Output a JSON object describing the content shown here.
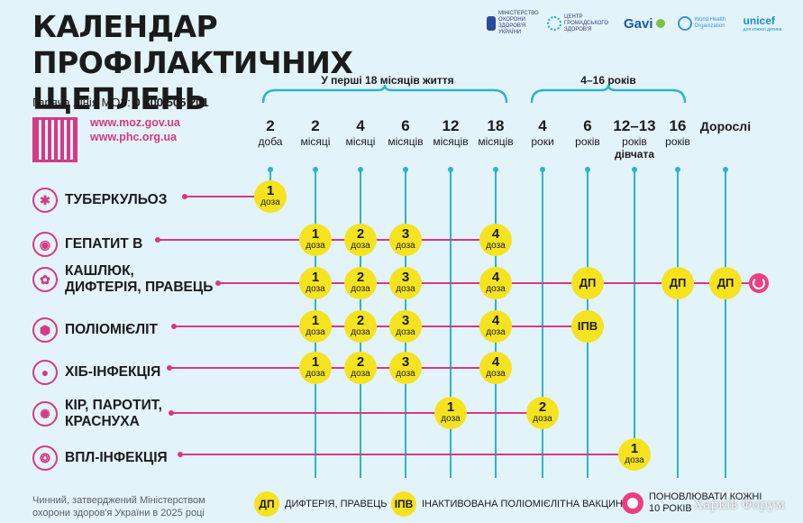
{
  "title": "КАЛЕНДАР ПРОФІЛАКТИЧНИХ ЩЕПЛЕНЬ",
  "logos": [
    {
      "name": "ministry-logo",
      "text": "МІНІСТЕРСТВО ОХОРОНИ ЗДОРОВ'Я УКРАЇНИ",
      "color": "#2b4a9a"
    },
    {
      "name": "phc-logo",
      "text": "ЦЕНТР ГРОМАДСЬКОГО ЗДОРОВ'Я",
      "color": "#1a9fd8"
    },
    {
      "name": "gavi-logo",
      "text": "Gavi"
    },
    {
      "name": "who-logo",
      "text": "World Health Organization",
      "color": "#3a93d6"
    },
    {
      "name": "unicef-logo",
      "text": "unicef",
      "sub": "для кожної дитини"
    }
  ],
  "hotline": {
    "label": "Гаряча лінія МОЗ:",
    "number": "0 800 505 201"
  },
  "links": [
    "www.moz.gov.ua",
    "www.phc.org.ua"
  ],
  "age_groups": [
    {
      "label": "У перші 18 місяців життя"
    },
    {
      "label": "4–16 років"
    }
  ],
  "columns": [
    {
      "num": "2",
      "unit": "доба"
    },
    {
      "num": "2",
      "unit": "місяці"
    },
    {
      "num": "4",
      "unit": "місяці"
    },
    {
      "num": "6",
      "unit": "місяців"
    },
    {
      "num": "12",
      "unit": "місяців"
    },
    {
      "num": "18",
      "unit": "місяців"
    },
    {
      "num": "4",
      "unit": "роки"
    },
    {
      "num": "6",
      "unit": "років"
    },
    {
      "num": "12–13",
      "unit": "років",
      "extra": "дівчата"
    },
    {
      "num": "16",
      "unit": "років"
    },
    {
      "num": "Дорослі",
      "unit": ""
    }
  ],
  "dose_label": "доза",
  "diseases": [
    {
      "name": "ТУБЕРКУЛЬОЗ",
      "icon": "tuberculosis-icon",
      "doses": [
        {
          "col": 0,
          "v": "1"
        }
      ]
    },
    {
      "name": "ГЕПАТИТ В",
      "icon": "hepatitis-icon",
      "doses": [
        {
          "col": 1,
          "v": "1"
        },
        {
          "col": 2,
          "v": "2"
        },
        {
          "col": 3,
          "v": "3"
        },
        {
          "col": 5,
          "v": "4"
        }
      ]
    },
    {
      "name": "КАШЛЮК,\nДИФТЕРІЯ, ПРАВЕЦЬ",
      "icon": "pertussis-icon",
      "doses": [
        {
          "col": 1,
          "v": "1"
        },
        {
          "col": 2,
          "v": "2"
        },
        {
          "col": 3,
          "v": "3"
        },
        {
          "col": 5,
          "v": "4"
        },
        {
          "col": 7,
          "v": "ДП",
          "code": true
        },
        {
          "col": 9,
          "v": "ДП",
          "code": true
        },
        {
          "col": 10,
          "v": "ДП",
          "code": true
        }
      ],
      "renew": true
    },
    {
      "name": "ПОЛІОМІЄЛІТ",
      "icon": "polio-icon",
      "doses": [
        {
          "col": 1,
          "v": "1"
        },
        {
          "col": 2,
          "v": "2"
        },
        {
          "col": 3,
          "v": "3"
        },
        {
          "col": 5,
          "v": "4"
        },
        {
          "col": 7,
          "v": "ІПВ",
          "code": true
        }
      ]
    },
    {
      "name": "ХІБ-ІНФЕКЦІЯ",
      "icon": "hib-icon",
      "doses": [
        {
          "col": 1,
          "v": "1"
        },
        {
          "col": 2,
          "v": "2"
        },
        {
          "col": 3,
          "v": "3"
        },
        {
          "col": 5,
          "v": "4"
        }
      ]
    },
    {
      "name": "КІР, ПАРОТИТ,\nКРАСНУХА",
      "icon": "measles-icon",
      "doses": [
        {
          "col": 4,
          "v": "1"
        },
        {
          "col": 6,
          "v": "2"
        }
      ]
    },
    {
      "name": "ВПЛ-ІНФЕКЦІЯ",
      "icon": "hpv-icon",
      "doses": [
        {
          "col": 8,
          "v": "1"
        }
      ]
    }
  ],
  "footer_note": "Чинний, затверджений Міністерством охорони здоров'я України в 2025 році",
  "legend": [
    {
      "code": "ДП",
      "text": "ДИФТЕРІЯ, ПРАВЕЦЬ"
    },
    {
      "code": "ІПВ",
      "text": "ІНАКТИВОВАНА ПОЛІОМІЄЛІТНА ВАКЦИНА"
    },
    {
      "code": "",
      "text": "ПОНОВЛЮВАТИ КОЖНІ\n10 РОКІВ",
      "pink": true
    }
  ],
  "watermark": "Харків Форум",
  "colors": {
    "background": "#e3f3fa",
    "accent_pink": "#d43a85",
    "teal_line": "#2bb5c8",
    "dose_yellow": "#f5e31f"
  }
}
